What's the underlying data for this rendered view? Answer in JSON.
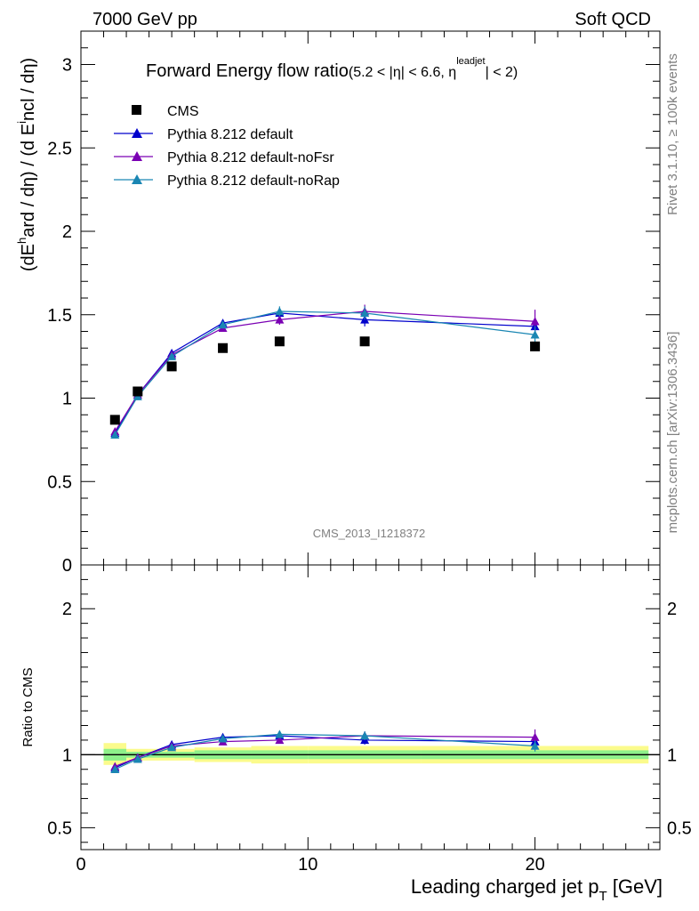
{
  "header": {
    "left": "7000 GeV pp",
    "right": "Soft QCD"
  },
  "side_labels": {
    "rivet": "Rivet 3.1.10, ≥ 100k events",
    "mcplots": "mcplots.cern.ch [arXiv:1306.3436]"
  },
  "watermark": "CMS_2013_I1218372",
  "title": {
    "main": "Forward Energy flow ratio",
    "cut_a": "(5.2 < |",
    "eta1": "η",
    "cut_b": "| < 6.6, ",
    "eta2": "η",
    "sup": "leadjet",
    "cut_c": "| < 2)"
  },
  "ylabel": {
    "open": "(dE",
    "sup": "h",
    "rest": "ard / dη) / (d E",
    "sup2": "i",
    "rest2": "ncl / dη)"
  },
  "ratio_ylabel": "Ratio to CMS",
  "xlabel": {
    "main": "Leading charged jet p",
    "sub": "T",
    "unit": " [GeV]"
  },
  "colors": {
    "cms": "#000000",
    "default": "#0000cc",
    "noFsr": "#7a00b3",
    "noRap": "#1a86b3",
    "band_outer": "#fbfb8c",
    "band_inner": "#8ef08a"
  },
  "chart_data": {
    "type": "scatter",
    "x_label": "Leading charged jet pT [GeV]",
    "xlim": [
      0,
      25.5
    ],
    "main_ylim": [
      0,
      3.2
    ],
    "ratio_ylim": [
      0.35,
      2.3
    ],
    "x_ticks": [
      "0",
      "10",
      "20"
    ],
    "main_y_ticks": [
      "0",
      "0.5",
      "1",
      "1.5",
      "2",
      "2.5",
      "3"
    ],
    "ratio_y_ticks": [
      "0.5",
      "1",
      "2"
    ],
    "x_tick_values": [
      0,
      10,
      20
    ],
    "main_y_tick_values": [
      0,
      0.5,
      1,
      1.5,
      2,
      2.5,
      3
    ],
    "ratio_y_tick_values": [
      0.5,
      1,
      2
    ],
    "cms": {
      "name": "CMS",
      "x": [
        1.5,
        2.5,
        4.0,
        6.25,
        8.75,
        12.5,
        20.0
      ],
      "y": [
        0.87,
        1.04,
        1.19,
        1.3,
        1.34,
        1.34,
        1.31
      ]
    },
    "series": [
      {
        "name": "Pythia 8.212 default",
        "key": "default",
        "x": [
          1.5,
          2.5,
          4.0,
          6.25,
          8.75,
          12.5,
          20.0
        ],
        "y": [
          0.79,
          1.02,
          1.27,
          1.45,
          1.51,
          1.47,
          1.43
        ],
        "err": [
          0.01,
          0.01,
          0.01,
          0.02,
          0.03,
          0.04,
          0.05
        ],
        "ratio": [
          0.91,
          0.98,
          1.07,
          1.12,
          1.13,
          1.1,
          1.09
        ]
      },
      {
        "name": "Pythia 8.212 default-noFsr",
        "key": "noFsr",
        "x": [
          1.5,
          2.5,
          4.0,
          6.25,
          8.75,
          12.5,
          20.0
        ],
        "y": [
          0.8,
          1.02,
          1.26,
          1.42,
          1.47,
          1.52,
          1.46
        ],
        "err": [
          0.01,
          0.01,
          0.01,
          0.02,
          0.03,
          0.04,
          0.07
        ],
        "ratio": [
          0.92,
          0.98,
          1.06,
          1.09,
          1.1,
          1.13,
          1.12
        ]
      },
      {
        "name": "Pythia 8.212 default-noRap",
        "key": "noRap",
        "x": [
          1.5,
          2.5,
          4.0,
          6.25,
          8.75,
          12.5,
          20.0
        ],
        "y": [
          0.78,
          1.01,
          1.25,
          1.44,
          1.52,
          1.51,
          1.38
        ],
        "err": [
          0.01,
          0.01,
          0.01,
          0.02,
          0.03,
          0.04,
          0.05
        ],
        "ratio": [
          0.9,
          0.97,
          1.05,
          1.11,
          1.14,
          1.13,
          1.06
        ]
      }
    ],
    "ratio_band": {
      "edges": [
        1.0,
        2.0,
        3.0,
        5.0,
        7.5,
        10.0,
        15.0,
        25.0
      ],
      "outer_lo": [
        0.93,
        0.96,
        0.96,
        0.95,
        0.94,
        0.94,
        0.94
      ],
      "outer_hi": [
        1.08,
        1.04,
        1.04,
        1.05,
        1.06,
        1.06,
        1.06
      ],
      "inner_lo": [
        0.96,
        0.98,
        0.98,
        0.97,
        0.97,
        0.97,
        0.97
      ],
      "inner_hi": [
        1.04,
        1.02,
        1.02,
        1.03,
        1.03,
        1.03,
        1.03
      ]
    }
  }
}
